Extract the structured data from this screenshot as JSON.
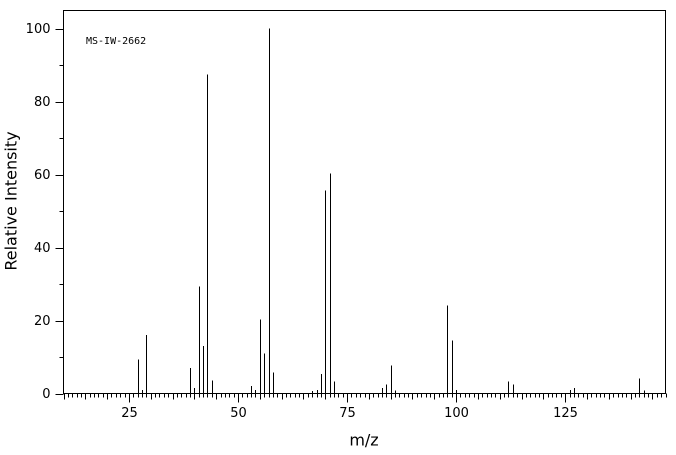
{
  "chart_data": {
    "type": "bar",
    "annotation": "MS-IW-2662",
    "xlabel": "m/z",
    "ylabel": "Relative Intensity",
    "x": [
      27,
      28,
      29,
      39,
      40,
      41,
      42,
      43,
      44,
      53,
      54,
      55,
      56,
      57,
      58,
      67,
      68,
      69,
      70,
      71,
      72,
      83,
      84,
      85,
      86,
      98,
      99,
      100,
      112,
      113,
      126,
      127,
      142,
      143
    ],
    "values": [
      9.3,
      1,
      16,
      7,
      1.5,
      29.3,
      13,
      87.4,
      3.5,
      2,
      1,
      20.3,
      11,
      100,
      5.8,
      0.7,
      1,
      5.3,
      55.6,
      60.3,
      3.3,
      1.5,
      2.5,
      7.7,
      0.8,
      24.1,
      14.5,
      1,
      3.3,
      2.5,
      1,
      1.5,
      4.1,
      0.8
    ],
    "color": "#000000",
    "xlim": [
      10,
      148
    ],
    "xticks": [
      25,
      50,
      75,
      100,
      125
    ],
    "ylim": [
      0,
      105
    ],
    "yticks": [
      0,
      20,
      40,
      60,
      80,
      100
    ]
  }
}
